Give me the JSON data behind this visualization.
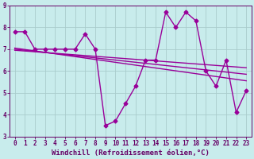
{
  "xlabel": "Windchill (Refroidissement éolien,°C)",
  "ylabel": "",
  "bg_color": "#c8ecec",
  "line_color": "#990099",
  "grid_color": "#aacccc",
  "axis_color": "#660066",
  "x_data": [
    0,
    1,
    2,
    3,
    4,
    5,
    6,
    7,
    8,
    9,
    10,
    11,
    12,
    13,
    14,
    15,
    16,
    17,
    18,
    19,
    20,
    21,
    22,
    23
  ],
  "y_data": [
    7.8,
    7.8,
    7.0,
    7.0,
    7.0,
    7.0,
    7.0,
    7.7,
    7.0,
    3.5,
    3.7,
    4.5,
    5.3,
    6.5,
    6.5,
    8.7,
    8.0,
    8.7,
    8.3,
    6.0,
    5.3,
    6.5,
    4.1,
    5.1
  ],
  "trend1_x": [
    0,
    23
  ],
  "trend1_y": [
    7.05,
    5.55
  ],
  "trend2_x": [
    0,
    23
  ],
  "trend2_y": [
    6.95,
    6.15
  ],
  "trend3_x": [
    0,
    23
  ],
  "trend3_y": [
    7.0,
    5.85
  ],
  "ylim": [
    3.0,
    9.0
  ],
  "xlim": [
    -0.5,
    23.5
  ],
  "yticks": [
    3,
    4,
    5,
    6,
    7,
    8,
    9
  ],
  "xticks": [
    0,
    1,
    2,
    3,
    4,
    5,
    6,
    7,
    8,
    9,
    10,
    11,
    12,
    13,
    14,
    15,
    16,
    17,
    18,
    19,
    20,
    21,
    22,
    23
  ],
  "xlabel_fontsize": 6.5,
  "tick_fontsize": 5.5,
  "marker": "D",
  "markersize": 2.5,
  "linewidth": 1.0
}
